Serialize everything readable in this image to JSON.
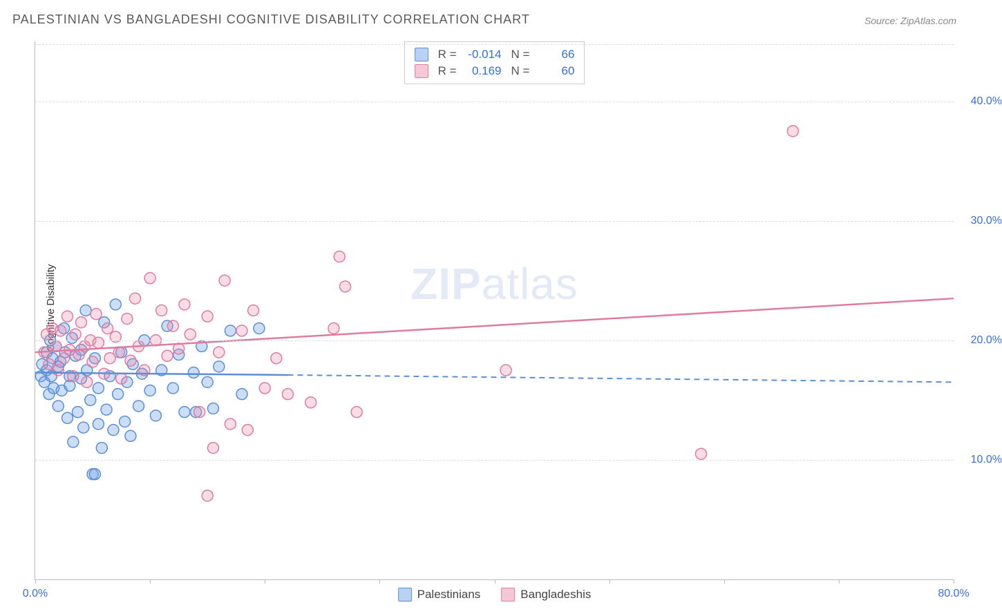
{
  "title": "PALESTINIAN VS BANGLADESHI COGNITIVE DISABILITY CORRELATION CHART",
  "source": "Source: ZipAtlas.com",
  "ylabel": "Cognitive Disability",
  "watermark_a": "ZIP",
  "watermark_b": "atlas",
  "chart": {
    "type": "scatter",
    "xlim": [
      0,
      80
    ],
    "ylim": [
      0,
      45
    ],
    "xticks": [
      0,
      10,
      20,
      30,
      40,
      50,
      60,
      70,
      80
    ],
    "xtick_labels": {
      "0": "0.0%",
      "80": "80.0%"
    },
    "yticks": [
      10,
      20,
      30,
      40
    ],
    "ytick_labels": [
      "10.0%",
      "20.0%",
      "30.0%",
      "40.0%"
    ],
    "grid_color": "#dddddd",
    "axis_color": "#bbbbbb",
    "background_color": "#ffffff",
    "tick_label_color": "#3b6fd6",
    "marker_radius": 8,
    "marker_stroke_width": 1.5,
    "trend_line_width": 2.5,
    "trend_dash_width": 2
  },
  "series": [
    {
      "name": "Palestinians",
      "fill": "rgba(108,158,231,0.35)",
      "stroke": "#5a8fd6",
      "swatch_fill": "#b9d1f2",
      "swatch_stroke": "#5a8fd6",
      "R": "-0.014",
      "N": "66",
      "trend_solid": {
        "x1": 0,
        "y1": 17.3,
        "x2": 22,
        "y2": 17.1
      },
      "trend_dash": {
        "x1": 22,
        "y1": 17.1,
        "x2": 80,
        "y2": 16.5
      },
      "points": [
        [
          0.5,
          17
        ],
        [
          0.6,
          18
        ],
        [
          0.8,
          16.5
        ],
        [
          1,
          19
        ],
        [
          1,
          17.5
        ],
        [
          1.2,
          15.5
        ],
        [
          1.3,
          20
        ],
        [
          1.4,
          17
        ],
        [
          1.5,
          18.5
        ],
        [
          1.6,
          16
        ],
        [
          1.8,
          19.5
        ],
        [
          2,
          14.5
        ],
        [
          2,
          17.8
        ],
        [
          2.2,
          18.2
        ],
        [
          2.3,
          15.8
        ],
        [
          2.5,
          21
        ],
        [
          2.6,
          19
        ],
        [
          2.8,
          13.5
        ],
        [
          3,
          17
        ],
        [
          3,
          16.2
        ],
        [
          3.2,
          20.2
        ],
        [
          3.3,
          11.5
        ],
        [
          3.5,
          18.7
        ],
        [
          3.7,
          14
        ],
        [
          4,
          16.8
        ],
        [
          4,
          19.2
        ],
        [
          4.2,
          12.7
        ],
        [
          4.4,
          22.5
        ],
        [
          4.5,
          17.5
        ],
        [
          4.8,
          15
        ],
        [
          5,
          8.8
        ],
        [
          5.2,
          8.8
        ],
        [
          5.2,
          18.5
        ],
        [
          5.5,
          13
        ],
        [
          5.5,
          16
        ],
        [
          5.8,
          11
        ],
        [
          6,
          21.5
        ],
        [
          6.2,
          14.2
        ],
        [
          6.5,
          17
        ],
        [
          6.8,
          12.5
        ],
        [
          7,
          23
        ],
        [
          7.2,
          15.5
        ],
        [
          7.5,
          19
        ],
        [
          7.8,
          13.2
        ],
        [
          8,
          16.5
        ],
        [
          8.3,
          12
        ],
        [
          8.5,
          18
        ],
        [
          9,
          14.5
        ],
        [
          9.3,
          17.2
        ],
        [
          9.5,
          20
        ],
        [
          10,
          15.8
        ],
        [
          10.5,
          13.7
        ],
        [
          11,
          17.5
        ],
        [
          11.5,
          21.2
        ],
        [
          12,
          16
        ],
        [
          12.5,
          18.8
        ],
        [
          13,
          14
        ],
        [
          13.8,
          17.3
        ],
        [
          14.5,
          19.5
        ],
        [
          15,
          16.5
        ],
        [
          15.5,
          14.3
        ],
        [
          16,
          17.8
        ],
        [
          17,
          20.8
        ],
        [
          18,
          15.5
        ],
        [
          14,
          14
        ],
        [
          19.5,
          21
        ]
      ]
    },
    {
      "name": "Bangladeshis",
      "fill": "rgba(236,140,170,0.30)",
      "stroke": "#e07ba0",
      "swatch_fill": "#f5c8d7",
      "swatch_stroke": "#e07ba0",
      "R": "0.169",
      "N": "60",
      "trend_solid": {
        "x1": 0,
        "y1": 19.0,
        "x2": 80,
        "y2": 23.5
      },
      "trend_dash": null,
      "points": [
        [
          0.8,
          19
        ],
        [
          1,
          20.5
        ],
        [
          1.2,
          18
        ],
        [
          1.5,
          21
        ],
        [
          1.8,
          19.5
        ],
        [
          2,
          17.5
        ],
        [
          2.2,
          20.8
        ],
        [
          2.5,
          18.5
        ],
        [
          2.8,
          22
        ],
        [
          3,
          19.2
        ],
        [
          3.3,
          17
        ],
        [
          3.5,
          20.5
        ],
        [
          3.8,
          18.8
        ],
        [
          4,
          21.5
        ],
        [
          4.3,
          19.5
        ],
        [
          4.5,
          16.5
        ],
        [
          4.8,
          20
        ],
        [
          5,
          18.2
        ],
        [
          5.3,
          22.2
        ],
        [
          5.5,
          19.8
        ],
        [
          6,
          17.2
        ],
        [
          6.3,
          21
        ],
        [
          6.5,
          18.5
        ],
        [
          7,
          20.3
        ],
        [
          7.3,
          19
        ],
        [
          7.5,
          16.8
        ],
        [
          8,
          21.8
        ],
        [
          8.3,
          18.3
        ],
        [
          8.7,
          23.5
        ],
        [
          9,
          19.5
        ],
        [
          9.5,
          17.5
        ],
        [
          10,
          25.2
        ],
        [
          10.5,
          20
        ],
        [
          11,
          22.5
        ],
        [
          11.5,
          18.7
        ],
        [
          12,
          21.2
        ],
        [
          12.5,
          19.3
        ],
        [
          13,
          23
        ],
        [
          13.5,
          20.5
        ],
        [
          14.3,
          14
        ],
        [
          15,
          22
        ],
        [
          15.5,
          11
        ],
        [
          16,
          19
        ],
        [
          16.5,
          25
        ],
        [
          17,
          13
        ],
        [
          18,
          20.8
        ],
        [
          19,
          22.5
        ],
        [
          20,
          16
        ],
        [
          21,
          18.5
        ],
        [
          22,
          15.5
        ],
        [
          24,
          14.8
        ],
        [
          26,
          21
        ],
        [
          26.5,
          27
        ],
        [
          27,
          24.5
        ],
        [
          28,
          14
        ],
        [
          41,
          17.5
        ],
        [
          58,
          10.5
        ],
        [
          66,
          37.5
        ],
        [
          18.5,
          12.5
        ],
        [
          15,
          7
        ]
      ]
    }
  ],
  "legend_labels": {
    "R": "R =",
    "N": "N ="
  }
}
